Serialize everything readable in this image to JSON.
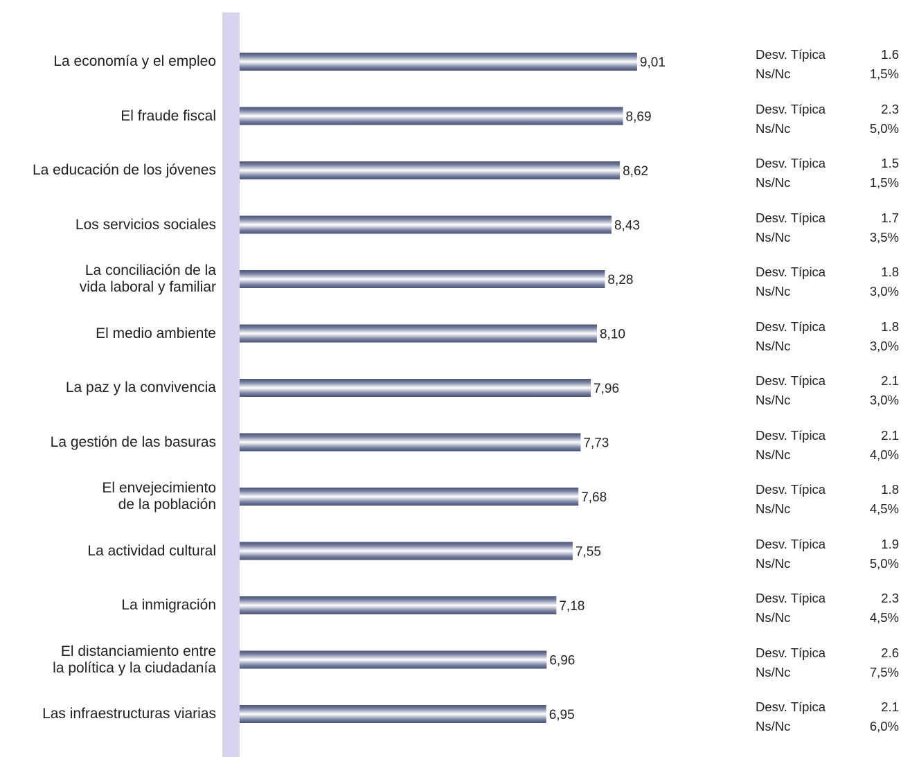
{
  "chart_data": {
    "type": "bar",
    "orientation": "horizontal",
    "categories": [
      "La economía y el empleo",
      "El fraude fiscal",
      "La educación de los jóvenes",
      "Los servicios sociales",
      "La conciliación de la\nvida laboral y familiar",
      "El medio ambiente",
      "La paz y la convivencia",
      "La gestión de las basuras",
      "El envejecimiento\nde la población",
      "La actividad cultural",
      "La inmigración",
      "El distanciamiento entre\nla política y la ciudadanía",
      "Las infraestructuras viarias"
    ],
    "values": [
      9.01,
      8.69,
      8.62,
      8.43,
      8.28,
      8.1,
      7.96,
      7.73,
      7.68,
      7.55,
      7.18,
      6.96,
      6.95
    ],
    "value_labels": [
      "9,01",
      "8,69",
      "8,62",
      "8,43",
      "8,28",
      "8,10",
      "7,96",
      "7,73",
      "7,68",
      "7,55",
      "7,18",
      "6,96",
      "6,95"
    ],
    "stats": {
      "desv_label": "Desv. Típica",
      "nsnc_label": "Ns/Nc",
      "desv_values": [
        "1.6",
        "2.3",
        "1.5",
        "1.7",
        "1.8",
        "1.8",
        "2.1",
        "2.1",
        "1.8",
        "1.9",
        "2.3",
        "2.6",
        "2.1"
      ],
      "nsnc_values": [
        "1,5%",
        "5,0%",
        "1,5%",
        "3,5%",
        "3,0%",
        "3,0%",
        "3,0%",
        "4,0%",
        "4,5%",
        "5,0%",
        "4,5%",
        "7,5%",
        "6,0%"
      ]
    },
    "xlim": [
      0,
      10
    ],
    "grid": false,
    "colors": {
      "bar_edge": "#4a5275",
      "bar_highlight": "#ffffff",
      "axis_band": "#d8d4f0",
      "text": "#231f20"
    }
  }
}
